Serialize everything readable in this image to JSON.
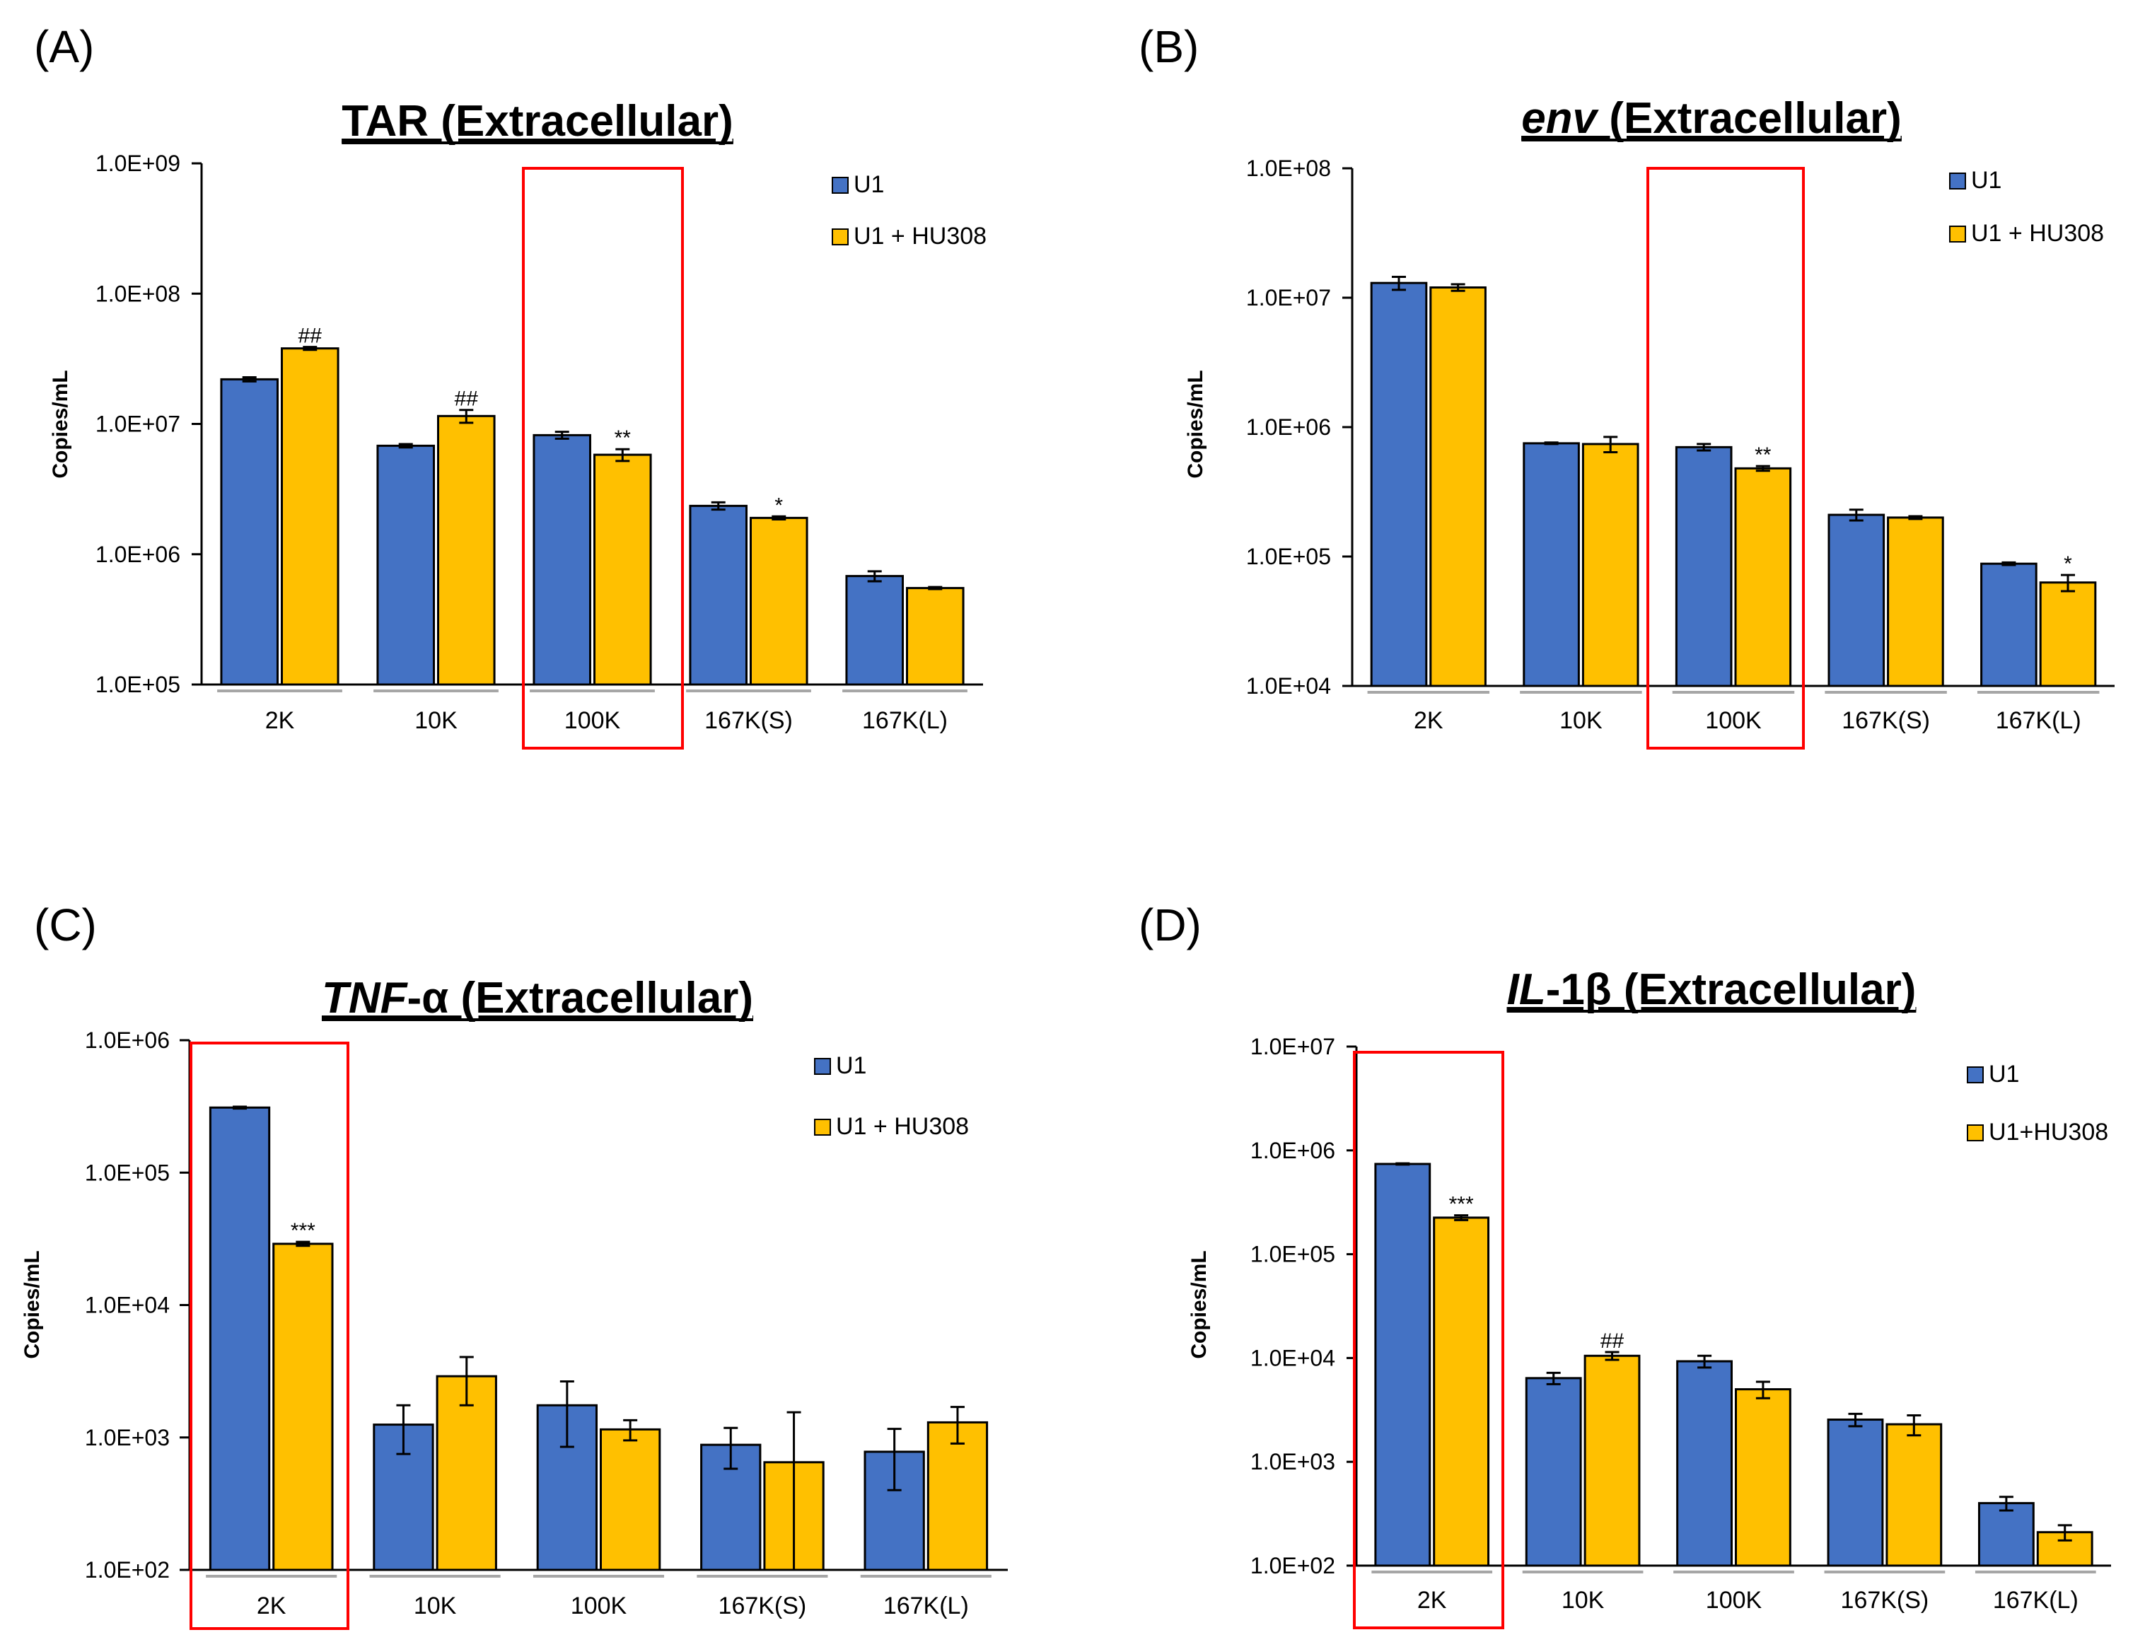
{
  "colors": {
    "series_1": "#4472C4",
    "series_2": "#FFC000",
    "highlight_box": "#FF0000",
    "axis": "#000000",
    "category_bar": "#A6A6A6"
  },
  "chart_data": [
    {
      "panel_label": "(A)",
      "type": "bar",
      "title": "TAR (Extracellular)",
      "title_parts": [
        {
          "text": "TAR (Extracellular)",
          "italic": false
        }
      ],
      "ylabel": "Copies/mL",
      "xlabel": "",
      "y_scale": "log",
      "ylim": [
        100000,
        1000000000
      ],
      "y_ticks": [
        100000,
        1000000,
        10000000,
        100000000,
        1000000000
      ],
      "y_tick_labels": [
        "1.0E+05",
        "1.0E+06",
        "1.0E+07",
        "1.0E+08",
        "1.0E+09"
      ],
      "categories": [
        "2K",
        "10K",
        "100K",
        "167K(S)",
        "167K(L)"
      ],
      "series": [
        {
          "name": "U1",
          "values": [
            22000000,
            6800000,
            8200000,
            2350000,
            680000
          ],
          "errors": [
            800000,
            200000,
            500000,
            150000,
            60000
          ],
          "annotations": [
            "",
            "",
            "",
            "",
            ""
          ]
        },
        {
          "name": "U1 + HU308",
          "values": [
            38000000,
            11500000,
            5800000,
            1900000,
            550000
          ],
          "errors": [
            1000000,
            1300000,
            600000,
            50000,
            10000
          ],
          "annotations": [
            "##",
            "##",
            "**",
            "*",
            ""
          ]
        }
      ],
      "legend_position": "top-right",
      "grid": false,
      "highlight_category": "100K"
    },
    {
      "panel_label": "(B)",
      "type": "bar",
      "title": "env (Extracellular)",
      "title_parts": [
        {
          "text": "env",
          "italic": true
        },
        {
          "text": " (Extracellular)",
          "italic": false
        }
      ],
      "ylabel": "Copies/mL",
      "xlabel": "",
      "y_scale": "log",
      "ylim": [
        10000,
        100000000
      ],
      "y_ticks": [
        10000,
        100000,
        1000000,
        10000000,
        100000000
      ],
      "y_tick_labels": [
        "1.0E+04",
        "1.0E+05",
        "1.0E+06",
        "1.0E+07",
        "1.0E+08"
      ],
      "categories": [
        "2K",
        "10K",
        "100K",
        "167K(S)",
        "167K(L)"
      ],
      "series": [
        {
          "name": "U1",
          "values": [
            13000000,
            750000,
            700000,
            210000,
            88000
          ],
          "errors": [
            1500000,
            10000,
            40000,
            20000,
            2000
          ],
          "annotations": [
            "",
            "",
            "",
            "",
            ""
          ]
        },
        {
          "name": "U1 + HU308",
          "values": [
            12000000,
            740000,
            480000,
            200000,
            63000
          ],
          "errors": [
            700000,
            100000,
            20000,
            5000,
            9000
          ],
          "annotations": [
            "",
            "",
            "**",
            "",
            "*"
          ]
        }
      ],
      "legend_position": "top-right",
      "grid": false,
      "highlight_category": "100K"
    },
    {
      "panel_label": "(C)",
      "type": "bar",
      "title": "TNF-α (Extracellular)",
      "title_parts": [
        {
          "text": "TNF",
          "italic": true
        },
        {
          "text": "-α (Extracellular)",
          "italic": false
        }
      ],
      "ylabel": "Copies/mL",
      "xlabel": "",
      "y_scale": "log",
      "ylim": [
        100,
        1000000
      ],
      "y_ticks": [
        100,
        1000,
        10000,
        100000,
        1000000
      ],
      "y_tick_labels": [
        "1.0E+02",
        "1.0E+03",
        "1.0E+04",
        "1.0E+05",
        "1.0E+06"
      ],
      "categories": [
        "2K",
        "10K",
        "100K",
        "167K(S)",
        "167K(L)"
      ],
      "series": [
        {
          "name": "U1",
          "values": [
            310000,
            1250,
            1750,
            880,
            780
          ],
          "errors": [
            5000,
            500,
            900,
            300,
            380
          ],
          "annotations": [
            "",
            "",
            "",
            "",
            ""
          ]
        },
        {
          "name": "U1 + HU308",
          "values": [
            29000,
            2900,
            1150,
            650,
            1300
          ],
          "errors": [
            1000,
            1150,
            200,
            900,
            400
          ],
          "annotations": [
            "***",
            "",
            "",
            "",
            ""
          ]
        }
      ],
      "legend_position": "top-right",
      "grid": false,
      "highlight_category": "2K"
    },
    {
      "panel_label": "(D)",
      "type": "bar",
      "title": "IL-1β (Extracellular)",
      "title_parts": [
        {
          "text": "IL",
          "italic": true
        },
        {
          "text": "-1β (Extracellular)",
          "italic": false
        }
      ],
      "ylabel": "Copies/mL",
      "xlabel": "",
      "y_scale": "log",
      "ylim": [
        100,
        10000000
      ],
      "y_ticks": [
        100,
        1000,
        10000,
        100000,
        1000000,
        10000000
      ],
      "y_tick_labels": [
        "1.0E+02",
        "1.0E+03",
        "1.0E+04",
        "1.0E+05",
        "1.0E+06",
        "1.0E+07"
      ],
      "categories": [
        "2K",
        "10K",
        "100K",
        "167K(S)",
        "167K(L)"
      ],
      "series": [
        {
          "name": "U1",
          "values": [
            740000,
            6400,
            9300,
            2550,
            400
          ],
          "errors": [
            10000,
            800,
            1200,
            350,
            60
          ],
          "annotations": [
            "",
            "",
            "",
            "",
            ""
          ]
        },
        {
          "name": "U1+HU308",
          "values": [
            225000,
            10500,
            5000,
            2300,
            210
          ],
          "errors": [
            12000,
            900,
            900,
            500,
            35
          ],
          "annotations": [
            "***",
            "##",
            "",
            "",
            ""
          ]
        }
      ],
      "legend_position": "top-right",
      "grid": false,
      "highlight_category": "2K"
    }
  ]
}
